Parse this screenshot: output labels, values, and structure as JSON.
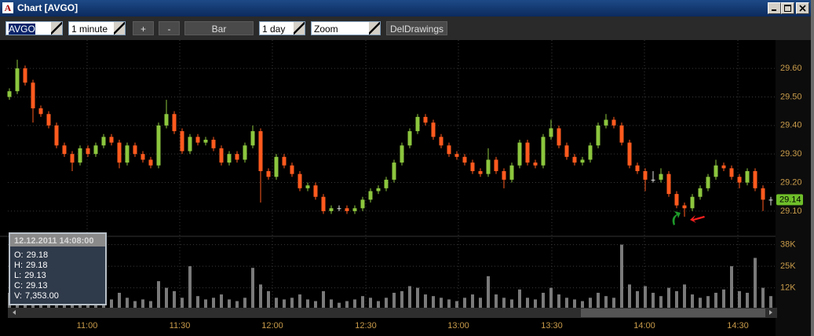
{
  "window": {
    "title": "Chart [AVGO]"
  },
  "toolbar": {
    "symbol": "AVGO",
    "interval": "1 minute",
    "plus": "+",
    "minus": "-",
    "style": "Bar",
    "range": "1 day",
    "mode": "Zoom",
    "delete": "DelDrawings"
  },
  "info": {
    "date": "12.12.2011 14:08:00",
    "lines": [
      {
        "label": "O:",
        "value": "29.18"
      },
      {
        "label": "H:",
        "value": "29.18"
      },
      {
        "label": "L:",
        "value": "29.13"
      },
      {
        "label": "C:",
        "value": "29.13"
      },
      {
        "label": "V:",
        "value": "7,353.00"
      }
    ]
  },
  "chart_data": {
    "type": "candlestick",
    "up_color": "#8cc63e",
    "down_color": "#ff5a1e",
    "flat_color": "#e0e0e0",
    "volume_color": "#7a7a7a",
    "grid": true,
    "xlim": [
      -0.2,
      97.6
    ],
    "xticks": [
      {
        "value": 9.9,
        "label": "11:00"
      },
      {
        "value": 21.7,
        "label": "11:30"
      },
      {
        "value": 33.5,
        "label": "12:00"
      },
      {
        "value": 45.4,
        "label": "12:30"
      },
      {
        "value": 57.2,
        "label": "13:00"
      },
      {
        "value": 69.1,
        "label": "13:30"
      },
      {
        "value": 80.9,
        "label": "14:00"
      },
      {
        "value": 92.8,
        "label": "14:30"
      }
    ],
    "ylim": [
      29.02,
      29.68
    ],
    "yticks": [
      {
        "value": 29.1,
        "label": "29.10"
      },
      {
        "value": 29.2,
        "label": "29.20"
      },
      {
        "value": 29.3,
        "label": "29.30"
      },
      {
        "value": 29.4,
        "label": "29.40"
      },
      {
        "value": 29.5,
        "label": "29.50"
      },
      {
        "value": 29.6,
        "label": "29.60"
      }
    ],
    "last_price": 29.14,
    "last_price_color": "#6fbf2a",
    "vlim": [
      0,
      43000
    ],
    "vticks": [
      {
        "value": 12000,
        "label": "12K"
      },
      {
        "value": 25000,
        "label": "25K"
      },
      {
        "value": 38000,
        "label": "38K"
      }
    ],
    "ohlc": [
      [
        29.5,
        29.53,
        29.49,
        29.52
      ],
      [
        29.52,
        29.63,
        29.51,
        29.6
      ],
      [
        29.6,
        29.61,
        29.54,
        29.55
      ],
      [
        29.55,
        29.56,
        29.41,
        29.46
      ],
      [
        29.46,
        29.47,
        29.43,
        29.44
      ],
      [
        29.44,
        29.45,
        29.39,
        29.4
      ],
      [
        29.4,
        29.41,
        29.32,
        29.33
      ],
      [
        29.33,
        29.34,
        29.29,
        29.3
      ],
      [
        29.3,
        29.31,
        29.24,
        29.27
      ],
      [
        29.27,
        29.33,
        29.26,
        29.32
      ],
      [
        29.32,
        29.33,
        29.29,
        29.3
      ],
      [
        29.3,
        29.34,
        29.29,
        29.33
      ],
      [
        29.33,
        29.37,
        29.32,
        29.36
      ],
      [
        29.36,
        29.37,
        29.33,
        29.34
      ],
      [
        29.34,
        29.35,
        29.25,
        29.27
      ],
      [
        29.27,
        29.34,
        29.26,
        29.33
      ],
      [
        29.33,
        29.34,
        29.29,
        29.3
      ],
      [
        29.3,
        29.31,
        29.27,
        29.28
      ],
      [
        29.28,
        29.29,
        29.25,
        29.26
      ],
      [
        29.26,
        29.41,
        29.25,
        29.4
      ],
      [
        29.4,
        29.49,
        29.39,
        29.44
      ],
      [
        29.44,
        29.45,
        29.37,
        29.38
      ],
      [
        29.38,
        29.39,
        29.3,
        29.31
      ],
      [
        29.31,
        29.37,
        29.3,
        29.36
      ],
      [
        29.36,
        29.37,
        29.33,
        29.34
      ],
      [
        29.34,
        29.36,
        29.33,
        29.35
      ],
      [
        29.35,
        29.36,
        29.31,
        29.32
      ],
      [
        29.32,
        29.33,
        29.26,
        29.27
      ],
      [
        29.27,
        29.31,
        29.26,
        29.3
      ],
      [
        29.3,
        29.31,
        29.27,
        29.28
      ],
      [
        29.28,
        29.34,
        29.27,
        29.33
      ],
      [
        29.33,
        29.4,
        29.32,
        29.38
      ],
      [
        29.38,
        29.39,
        29.13,
        29.24
      ],
      [
        29.24,
        29.25,
        29.21,
        29.22
      ],
      [
        29.22,
        29.3,
        29.21,
        29.29
      ],
      [
        29.29,
        29.3,
        29.25,
        29.26
      ],
      [
        29.26,
        29.27,
        29.22,
        29.23
      ],
      [
        29.23,
        29.24,
        29.17,
        29.18
      ],
      [
        29.18,
        29.2,
        29.17,
        29.19
      ],
      [
        29.19,
        29.2,
        29.14,
        29.15
      ],
      [
        29.15,
        29.16,
        29.09,
        29.1
      ],
      [
        29.1,
        29.12,
        29.09,
        29.11
      ],
      [
        29.11,
        29.12,
        29.1,
        29.11
      ],
      [
        29.11,
        29.12,
        29.09,
        29.1
      ],
      [
        29.1,
        29.12,
        29.09,
        29.11
      ],
      [
        29.11,
        29.15,
        29.1,
        29.14
      ],
      [
        29.14,
        29.18,
        29.13,
        29.17
      ],
      [
        29.17,
        29.19,
        29.16,
        29.18
      ],
      [
        29.18,
        29.22,
        29.17,
        29.21
      ],
      [
        29.21,
        29.28,
        29.2,
        29.27
      ],
      [
        29.27,
        29.34,
        29.26,
        29.33
      ],
      [
        29.33,
        29.39,
        29.32,
        29.38
      ],
      [
        29.38,
        29.44,
        29.37,
        29.43
      ],
      [
        29.43,
        29.44,
        29.4,
        29.41
      ],
      [
        29.41,
        29.42,
        29.35,
        29.36
      ],
      [
        29.36,
        29.37,
        29.32,
        29.33
      ],
      [
        29.33,
        29.34,
        29.29,
        29.3
      ],
      [
        29.3,
        29.31,
        29.28,
        29.29
      ],
      [
        29.29,
        29.3,
        29.26,
        29.27
      ],
      [
        29.27,
        29.28,
        29.23,
        29.24
      ],
      [
        29.24,
        29.25,
        29.22,
        29.23
      ],
      [
        29.23,
        29.32,
        29.22,
        29.28
      ],
      [
        29.28,
        29.29,
        29.23,
        29.24
      ],
      [
        29.24,
        29.25,
        29.18,
        29.21
      ],
      [
        29.21,
        29.27,
        29.2,
        29.26
      ],
      [
        29.26,
        29.35,
        29.25,
        29.34
      ],
      [
        29.34,
        29.35,
        29.26,
        29.27
      ],
      [
        29.27,
        29.28,
        29.25,
        29.26
      ],
      [
        29.26,
        29.37,
        29.25,
        29.36
      ],
      [
        29.36,
        29.42,
        29.35,
        29.39
      ],
      [
        29.39,
        29.4,
        29.32,
        29.33
      ],
      [
        29.33,
        29.34,
        29.28,
        29.29
      ],
      [
        29.29,
        29.3,
        29.26,
        29.27
      ],
      [
        29.27,
        29.29,
        29.26,
        29.28
      ],
      [
        29.28,
        29.34,
        29.27,
        29.33
      ],
      [
        29.33,
        29.41,
        29.32,
        29.4
      ],
      [
        29.4,
        29.44,
        29.39,
        29.42
      ],
      [
        29.42,
        29.43,
        29.39,
        29.4
      ],
      [
        29.4,
        29.41,
        29.33,
        29.34
      ],
      [
        29.34,
        29.35,
        29.25,
        29.26
      ],
      [
        29.26,
        29.27,
        29.23,
        29.24
      ],
      [
        29.24,
        29.25,
        29.17,
        29.21
      ],
      [
        29.21,
        29.24,
        29.2,
        29.21
      ],
      [
        29.21,
        29.25,
        29.2,
        29.23
      ],
      [
        29.23,
        29.24,
        29.15,
        29.16
      ],
      [
        29.16,
        29.17,
        29.11,
        29.12
      ],
      [
        29.12,
        29.13,
        29.08,
        29.11
      ],
      [
        29.11,
        29.16,
        29.1,
        29.15
      ],
      [
        29.15,
        29.19,
        29.14,
        29.18
      ],
      [
        29.18,
        29.23,
        29.17,
        29.22
      ],
      [
        29.22,
        29.28,
        29.21,
        29.26
      ],
      [
        29.26,
        29.27,
        29.24,
        29.25
      ],
      [
        29.25,
        29.26,
        29.21,
        29.22
      ],
      [
        29.22,
        29.23,
        29.18,
        29.2
      ],
      [
        29.2,
        29.25,
        29.19,
        29.24
      ],
      [
        29.24,
        29.25,
        29.17,
        29.18
      ],
      [
        29.18,
        29.19,
        29.1,
        29.14
      ],
      [
        29.14,
        29.15,
        29.12,
        29.14
      ]
    ],
    "volume": [
      9000,
      12000,
      8000,
      7000,
      6000,
      5000,
      6000,
      5000,
      7000,
      6000,
      5000,
      4000,
      6000,
      5000,
      9000,
      6000,
      4000,
      5000,
      4000,
      16000,
      12000,
      10000,
      6000,
      25000,
      7000,
      5000,
      6000,
      8000,
      5000,
      4000,
      6000,
      24000,
      14000,
      10000,
      6000,
      5000,
      6000,
      8000,
      5000,
      4000,
      10000,
      5000,
      3000,
      4000,
      5000,
      7000,
      6000,
      4000,
      6000,
      9000,
      10000,
      13000,
      12000,
      8000,
      7000,
      6000,
      5000,
      4000,
      6000,
      8000,
      6000,
      19000,
      8000,
      6000,
      5000,
      11000,
      6000,
      5000,
      9000,
      12000,
      8000,
      6000,
      5000,
      4000,
      6000,
      9000,
      7000,
      6000,
      38000,
      14000,
      10000,
      13000,
      9000,
      7000,
      12000,
      10000,
      14000,
      8000,
      6000,
      7000,
      9000,
      11000,
      25000,
      10000,
      9000,
      30000,
      12000,
      7000
    ]
  }
}
